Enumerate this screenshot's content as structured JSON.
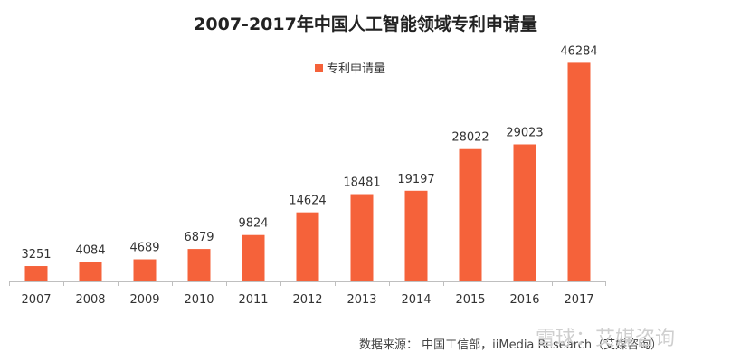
{
  "title": "2007-2017年中国人工智能领域专利申请量",
  "source": "数据来源： 中国工信部，iiMedia Research（艾媒咨询）",
  "watermark": "雪球：艾媒咨询",
  "colors": {
    "bar": "#F5623A",
    "axis": "#BFBFBF",
    "text": "#333333"
  },
  "chart_data": {
    "type": "bar",
    "title": "2007-2017年中国人工智能领域专利申请量",
    "categories": [
      "2007",
      "2008",
      "2009",
      "2010",
      "2011",
      "2012",
      "2013",
      "2014",
      "2015",
      "2016",
      "2017"
    ],
    "series": [
      {
        "name": "专利申请量",
        "values": [
          3251,
          4084,
          4689,
          6879,
          9824,
          14624,
          18481,
          19197,
          28022,
          29023,
          46284
        ]
      }
    ],
    "ylim": [
      0,
      50000
    ],
    "grid": false,
    "data_labels": true,
    "legend": "top-center"
  }
}
